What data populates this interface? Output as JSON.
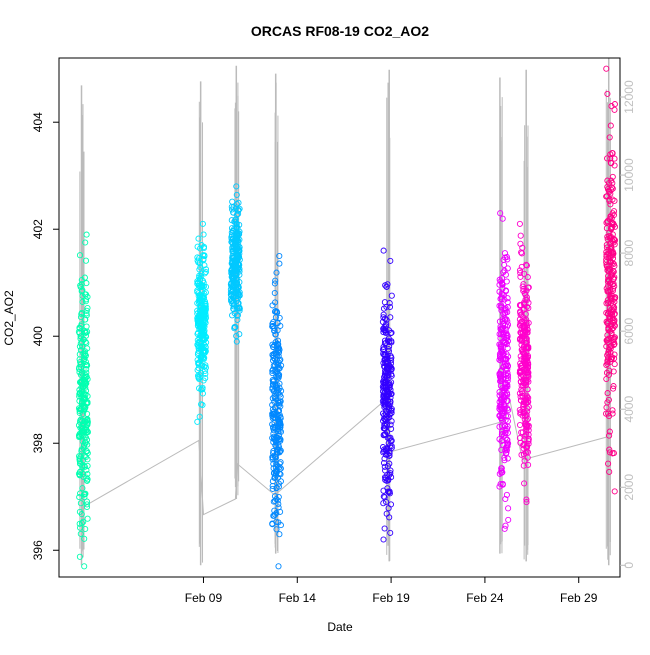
{
  "chart_data": {
    "type": "scatter",
    "title": "ORCAS RF08-19 CO2_AO2",
    "xlabel": "Date",
    "ylabel": "CO2_AO2",
    "x_ticks": [
      "Feb 09",
      "Feb 14",
      "Feb 19",
      "Feb 24",
      "Feb 29"
    ],
    "y_ticks": [
      "396",
      "398",
      "400",
      "402",
      "404"
    ],
    "y2_ticks": [
      "0",
      "2000",
      "4000",
      "6000",
      "8000",
      "10000",
      "12000"
    ],
    "ylim": [
      395.5,
      405.2
    ],
    "y2lim": [
      -300,
      13000
    ],
    "x_day_range": [
      1.3,
      31.2
    ],
    "flights": [
      {
        "day": 2.6,
        "ymin": 395.7,
        "ymax": 401.9,
        "color": "#00ffb0"
      },
      {
        "day": 8.9,
        "ymin": 398.4,
        "ymax": 402.1,
        "color": "#00ecff"
      },
      {
        "day": 10.7,
        "ymin": 399.9,
        "ymax": 402.8,
        "color": "#00c8ff"
      },
      {
        "day": 12.9,
        "ymin": 395.7,
        "ymax": 401.5,
        "color": "#0088ff"
      },
      {
        "day": 18.8,
        "ymin": 396.2,
        "ymax": 401.6,
        "color": "#3300ff"
      },
      {
        "day": 25.0,
        "ymin": 396.4,
        "ymax": 402.3,
        "color": "#ee00ff"
      },
      {
        "day": 26.1,
        "ymin": 396.9,
        "ymax": 402.1,
        "color": "#ff00cc"
      },
      {
        "day": 30.7,
        "ymin": 397.1,
        "ymax": 405.0,
        "color": "#ff0088"
      }
    ],
    "altitude_track": {
      "color": "#bbbbbb",
      "segments": [
        {
          "day": 2.5,
          "min": 0,
          "max": 12300
        },
        {
          "day": 8.85,
          "min": 0,
          "max": 12400
        },
        {
          "day": 10.75,
          "min": 1700,
          "max": 12800
        },
        {
          "day": 12.85,
          "min": 300,
          "max": 12600
        },
        {
          "day": 18.9,
          "min": 100,
          "max": 12700
        },
        {
          "day": 24.8,
          "min": 300,
          "max": 12500
        },
        {
          "day": 26.2,
          "min": 100,
          "max": 12700
        },
        {
          "day": 30.6,
          "min": 0,
          "max": 13000
        }
      ],
      "ferry": [
        [
          2.6,
          1500
        ],
        [
          8.75,
          3200
        ],
        [
          9.0,
          1300
        ],
        [
          10.7,
          1700
        ],
        [
          10.8,
          2600
        ],
        [
          12.8,
          1800
        ],
        [
          18.6,
          4200
        ],
        [
          18.9,
          2900
        ],
        [
          25.1,
          3700
        ],
        [
          25.3,
          4300
        ],
        [
          26.0,
          2700
        ],
        [
          30.6,
          3300
        ]
      ]
    },
    "grid": false,
    "legend": "none"
  }
}
